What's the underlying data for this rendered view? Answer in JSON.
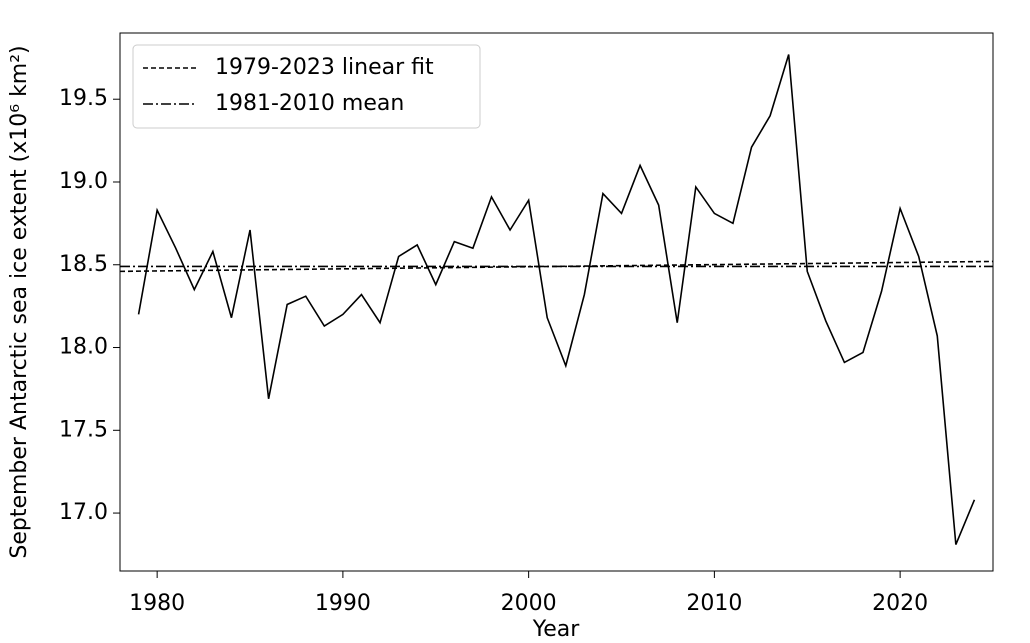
{
  "chart_data": {
    "type": "line",
    "xlabel": "Year",
    "ylabel": "September Antarctic sea ice extent (x10⁶ km²)",
    "xlim": [
      1978,
      2025
    ],
    "ylim": [
      16.65,
      19.9
    ],
    "xticks": [
      1980,
      1990,
      2000,
      2010,
      2020
    ],
    "yticks": [
      {
        "value": 17,
        "label": "17.0"
      },
      17.5,
      {
        "value": 18,
        "label": "18.0"
      },
      18.5,
      {
        "value": 19,
        "label": "19.0"
      },
      19.5
    ],
    "legend": "upper left",
    "series": [
      {
        "color": "#000000",
        "dash": "solid",
        "x": [
          1979,
          1980,
          1981,
          1982,
          1983,
          1984,
          1985,
          1986,
          1987,
          1988,
          1989,
          1990,
          1991,
          1992,
          1993,
          1994,
          1995,
          1996,
          1997,
          1998,
          1999,
          2000,
          2001,
          2002,
          2003,
          2004,
          2005,
          2006,
          2007,
          2008,
          2009,
          2010,
          2011,
          2012,
          2013,
          2014,
          2015,
          2016,
          2017,
          2018,
          2019,
          2020,
          2021,
          2022,
          2023,
          2024
        ],
        "values": [
          18.2,
          18.83,
          18.6,
          18.35,
          18.58,
          18.18,
          18.71,
          17.69,
          18.26,
          18.31,
          18.13,
          18.2,
          18.32,
          18.15,
          18.55,
          18.62,
          18.38,
          18.64,
          18.6,
          18.91,
          18.71,
          18.89,
          18.18,
          17.89,
          18.32,
          18.93,
          18.81,
          19.1,
          18.86,
          18.15,
          18.97,
          18.81,
          18.75,
          19.21,
          19.4,
          19.77,
          18.46,
          18.16,
          17.91,
          17.97,
          18.34,
          18.84,
          18.55,
          18.07,
          16.81,
          17.08
        ]
      },
      {
        "name": "1979-2023 linear fit",
        "color": "#000000",
        "dash": "dashed",
        "x": [
          1978,
          2025
        ],
        "values": [
          18.46,
          18.52
        ]
      },
      {
        "name": "1981-2010 mean",
        "color": "#000000",
        "dash": "dashdot",
        "x": [
          1978,
          2025
        ],
        "values": [
          18.49,
          18.49
        ]
      }
    ]
  }
}
